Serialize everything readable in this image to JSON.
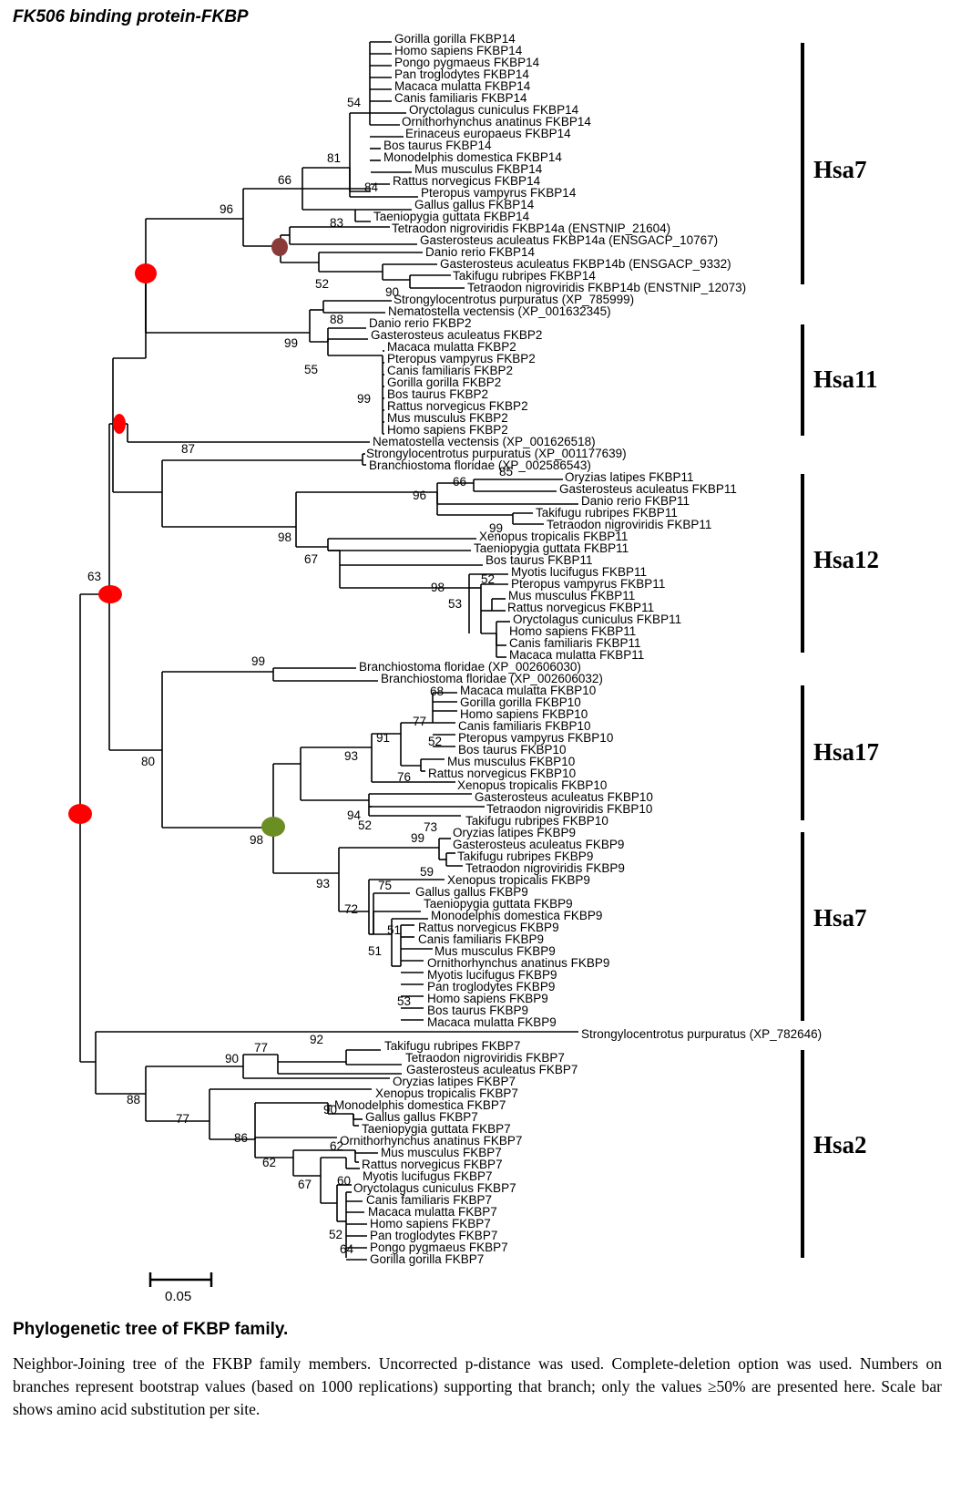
{
  "title": "FK506 binding protein-FKBP",
  "caption_title": "Phylogenetic tree of FKBP family.",
  "caption_text": "Neighbor-Joining tree of the FKBP family members. Uncorrected p-distance was used. Complete-deletion option was used. Numbers on branches represent bootstrap values (based on 1000 replications) supporting that branch; only the values ≥50% are presented here. Scale bar shows amino acid substitution per site.",
  "scale_label": "0.05",
  "clades": [
    "Hsa7",
    "Hsa11",
    "Hsa12",
    "Hsa17",
    "Hsa7",
    "Hsa2"
  ],
  "marker_colors": {
    "red": "#ff0000",
    "brown": "#8b3a3a",
    "green": "#6b8e23"
  },
  "leaves": [
    "Gorilla gorilla FKBP14",
    "Homo sapiens FKBP14",
    "Pongo pygmaeus FKBP14",
    "Pan troglodytes FKBP14",
    "Macaca mulatta FKBP14",
    "Canis familiaris FKBP14",
    "Oryctolagus cuniculus FKBP14",
    "Ornithorhynchus anatinus FKBP14",
    "Erinaceus europaeus FKBP14",
    "Bos taurus FKBP14",
    "Monodelphis domestica FKBP14",
    "Mus musculus FKBP14",
    "Rattus norvegicus FKBP14",
    "Pteropus vampyrus FKBP14",
    "Gallus gallus FKBP14",
    "Taeniopygia guttata FKBP14",
    "Tetraodon nigroviridis FKBP14a (ENSTNIP_21604)",
    "Gasterosteus aculeatus FKBP14a (ENSGACP_10767)",
    "Danio rerio FKBP14",
    "Gasterosteus aculeatus FKBP14b (ENSGACP_9332)",
    "Takifugu rubripes FKBP14",
    "Tetraodon nigroviridis FKBP14b (ENSTNIP_12073)",
    "Strongylocentrotus purpuratus (XP_785999)",
    "Nematostella vectensis (XP_001632345)",
    "Danio rerio FKBP2",
    "Gasterosteus aculeatus FKBP2",
    "Macaca mulatta FKBP2",
    "Pteropus vampyrus FKBP2",
    "Canis familiaris FKBP2",
    "Gorilla gorilla FKBP2",
    "Bos taurus FKBP2",
    "Rattus norvegicus FKBP2",
    "Mus musculus FKBP2",
    "Homo sapiens FKBP2",
    "Nematostella vectensis (XP_001626518)",
    "Strongylocentrotus purpuratus (XP_001177639)",
    "Branchiostoma floridae (XP_002586543)",
    "Oryzias latipes FKBP11",
    "Gasterosteus aculeatus FKBP11",
    "Danio rerio FKBP11",
    "Takifugu rubripes FKBP11",
    "Tetraodon nigroviridis FKBP11",
    "Xenopus tropicalis FKBP11",
    "Taeniopygia guttata FKBP11",
    "Bos taurus FKBP11",
    "Myotis lucifugus FKBP11",
    "Pteropus vampyrus FKBP11",
    "Mus musculus FKBP11",
    "Rattus norvegicus FKBP11",
    "Oryctolagus cuniculus FKBP11",
    "Homo sapiens FKBP11",
    "Canis familiaris FKBP11",
    "Macaca mulatta FKBP11",
    "Branchiostoma floridae (XP_002606030)",
    "Branchiostoma floridae (XP_002606032)",
    "Macaca mulatta FKBP10",
    "Gorilla gorilla FKBP10",
    "Homo sapiens FKBP10",
    "Canis familiaris FKBP10",
    "Pteropus vampyrus FKBP10",
    "Bos taurus FKBP10",
    "Mus musculus FKBP10",
    "Rattus norvegicus FKBP10",
    "Xenopus tropicalis FKBP10",
    "Gasterosteus aculeatus FKBP10",
    "Tetraodon nigroviridis FKBP10",
    "Takifugu rubripes FKBP10",
    "Oryzias latipes FKBP9",
    "Gasterosteus aculeatus FKBP9",
    "Takifugu rubripes FKBP9",
    "Tetraodon nigroviridis FKBP9",
    "Xenopus tropicalis FKBP9",
    "Gallus gallus FKBP9",
    "Taeniopygia guttata FKBP9",
    "Monodelphis domestica FKBP9",
    "Rattus norvegicus FKBP9",
    "Canis familiaris FKBP9",
    "Mus musculus FKBP9",
    "Ornithorhynchus anatinus FKBP9",
    "Myotis lucifugus FKBP9",
    "Pan troglodytes FKBP9",
    "Homo sapiens FKBP9",
    "Bos taurus FKBP9",
    "Macaca mulatta FKBP9",
    "Strongylocentrotus purpuratus (XP_782646)",
    "Takifugu rubripes FKBP7",
    "Tetraodon nigroviridis FKBP7",
    "Gasterosteus aculeatus FKBP7",
    "Oryzias latipes FKBP7",
    "Xenopus tropicalis FKBP7",
    "Monodelphis domestica FKBP7",
    "Gallus gallus FKBP7",
    "Taeniopygia guttata FKBP7",
    "Ornithorhynchus anatinus FKBP7",
    "Mus musculus FKBP7",
    "Rattus norvegicus FKBP7",
    "Myotis lucifugus FKBP7",
    "Oryctolagus cuniculus FKBP7",
    "Canis familiaris FKBP7",
    "Macaca mulatta FKBP7",
    "Homo sapiens FKBP7",
    "Pan troglodytes FKBP7",
    "Pongo pygmaeus FKBP7",
    "Gorilla gorilla FKBP7"
  ],
  "bootstrap": [
    "54",
    "81",
    "66",
    "84",
    "96",
    "83",
    "52",
    "90",
    "88",
    "99",
    "55",
    "99",
    "87",
    "85",
    "66",
    "96",
    "99",
    "98",
    "67",
    "52",
    "98",
    "53",
    "63",
    "99",
    "68",
    "77",
    "52",
    "91",
    "93",
    "76",
    "80",
    "94",
    "52",
    "73",
    "99",
    "98",
    "59",
    "93",
    "75",
    "72",
    "51",
    "51",
    "53",
    "92",
    "77",
    "90",
    "88",
    "90",
    "77",
    "86",
    "62",
    "62",
    "60",
    "67",
    "52",
    "64"
  ]
}
